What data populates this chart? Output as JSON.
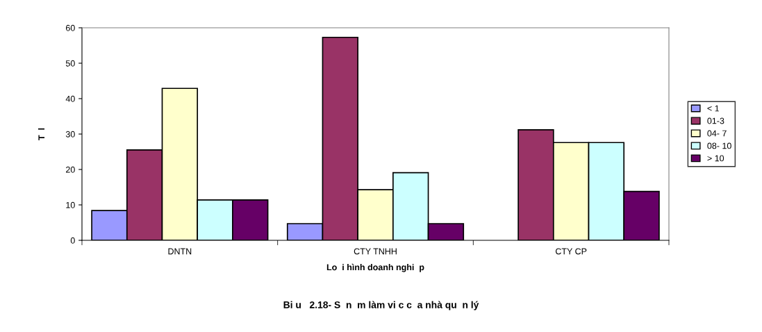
{
  "chart_data": {
    "type": "bar",
    "title": "Bi u   2.18- S  n  m làm vi c c  a nhà qu  n lý",
    "xlabel": "Lo  i hình doanh nghi  p",
    "ylabel": "T  l",
    "categories": [
      "DNTN",
      "CTY TNHH",
      "CTY CP"
    ],
    "series": [
      {
        "name": "< 1",
        "color": "#9999ff",
        "values": [
          8.4,
          4.7,
          null
        ]
      },
      {
        "name": "01-3",
        "color": "#993366",
        "values": [
          25.5,
          57.3,
          31.2
        ]
      },
      {
        "name": "04- 7",
        "color": "#ffffcc",
        "values": [
          42.9,
          14.3,
          27.6
        ]
      },
      {
        "name": "08- 10",
        "color": "#ccffff",
        "values": [
          11.4,
          19.1,
          27.6
        ]
      },
      {
        "name": "> 10",
        "color": "#660066",
        "values": [
          11.4,
          4.7,
          13.8
        ]
      }
    ],
    "ylim": [
      0,
      60
    ],
    "yticks": [
      0,
      10,
      20,
      30,
      40,
      50,
      60
    ],
    "grid": false,
    "legend": "right"
  }
}
